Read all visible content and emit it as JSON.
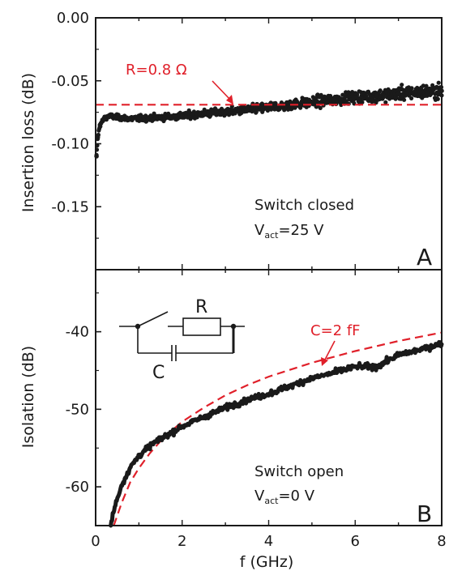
{
  "colors": {
    "data": "#1a1a1a",
    "fit": "#e0202a",
    "frame": "#1a1a1a"
  },
  "x_axis": {
    "label": "f (GHz)",
    "ticks": [
      {
        "v": 0,
        "t": "0"
      },
      {
        "v": 2,
        "t": "2"
      },
      {
        "v": 4,
        "t": "4"
      },
      {
        "v": 6,
        "t": "6"
      },
      {
        "v": 8,
        "t": "8"
      }
    ]
  },
  "chart_data": [
    {
      "type": "scatter",
      "panel": "A",
      "ylabel": "Insertion loss (dB)",
      "xlim": [
        0,
        8
      ],
      "ylim": [
        -0.2,
        0.0
      ],
      "yticks": [
        {
          "v": 0,
          "t": "0.00"
        },
        {
          "v": -0.05,
          "t": "-0.05"
        },
        {
          "v": -0.1,
          "t": "-0.10"
        },
        {
          "v": -0.15,
          "t": "-0.15"
        }
      ],
      "annotation": {
        "line1": "Switch closed",
        "v_main": "V",
        "v_sub": "act",
        "v_rest": "=25 V"
      },
      "series": [
        {
          "kind": "measured",
          "x": [
            0.02,
            0.05,
            0.1,
            0.2,
            0.3,
            0.5,
            0.75,
            1.0,
            1.5,
            2.0,
            2.5,
            3.0,
            3.5,
            4.0,
            4.5,
            5.0,
            5.5,
            6.0,
            6.5,
            7.0,
            7.5,
            8.0
          ],
          "y": [
            -0.11,
            -0.095,
            -0.085,
            -0.08,
            -0.078,
            -0.079,
            -0.08,
            -0.08,
            -0.079,
            -0.078,
            -0.076,
            -0.075,
            -0.073,
            -0.071,
            -0.069,
            -0.067,
            -0.065,
            -0.063,
            -0.062,
            -0.06,
            -0.059,
            -0.058
          ]
        },
        {
          "kind": "fit",
          "name": "R=0.8 Ω",
          "x": [
            0,
            8
          ],
          "y": [
            -0.069,
            -0.069
          ]
        }
      ]
    },
    {
      "type": "line",
      "panel": "B",
      "ylabel": "Isolation (dB)",
      "xlim": [
        0,
        8
      ],
      "ylim": [
        -65,
        -32
      ],
      "yticks": [
        {
          "v": -40,
          "t": "-40"
        },
        {
          "v": -50,
          "t": "-50"
        },
        {
          "v": -60,
          "t": "-60"
        }
      ],
      "annotation": {
        "line1": "Switch open",
        "v_main": "V",
        "v_sub": "act",
        "v_rest": "=0 V"
      },
      "series": [
        {
          "kind": "measured",
          "x": [
            0.35,
            0.4,
            0.5,
            0.6,
            0.8,
            1.0,
            1.3,
            1.6,
            2.0,
            2.5,
            3.0,
            3.5,
            4.0,
            4.5,
            5.0,
            5.5,
            6.0,
            6.5,
            7.0,
            7.5,
            8.0
          ],
          "y": [
            -65,
            -63.5,
            -61.5,
            -59.8,
            -57.5,
            -56.0,
            -54.5,
            -53.5,
            -52.2,
            -51.0,
            -49.8,
            -48.8,
            -48.0,
            -47.0,
            -46.0,
            -45.3,
            -44.5,
            -44.5,
            -43.0,
            -42.3,
            -41.5
          ]
        },
        {
          "kind": "fit",
          "name": "C=2 fF",
          "x": [
            0.42,
            0.5,
            0.6,
            0.8,
            1.0,
            1.25,
            1.5,
            1.75,
            2.0,
            2.5,
            3.0,
            3.5,
            4.0,
            5.0,
            6.0,
            7.0,
            8.0
          ],
          "y": [
            -65.0,
            -63.7,
            -62.1,
            -59.4,
            -57.6,
            -55.7,
            -54.1,
            -52.8,
            -51.6,
            -49.8,
            -48.2,
            -46.9,
            -45.8,
            -44.0,
            -42.5,
            -41.2,
            -40.1
          ]
        }
      ],
      "inset": {
        "resistor_label": "R",
        "capacitor_label": "C"
      }
    }
  ]
}
